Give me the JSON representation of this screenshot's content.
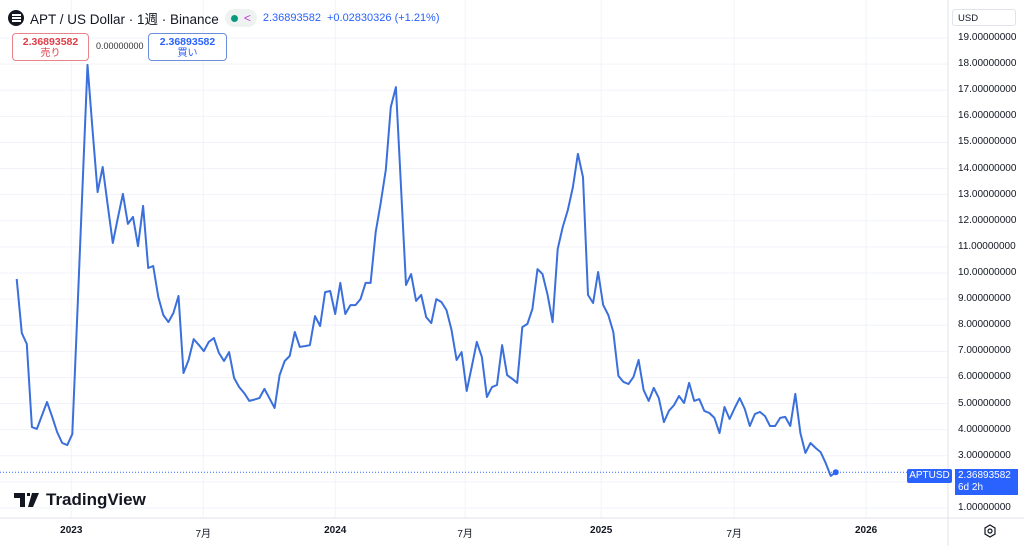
{
  "header": {
    "symbol_title": "APT / US Dollar · 1週 · Binance",
    "last_price": "2.36893582",
    "change": "+0.02830326 (+1.21%)",
    "status_color": "#089981"
  },
  "trade": {
    "sell_price": "2.36893582",
    "sell_label": "売り",
    "spread": "0.00000000",
    "buy_price": "2.36893582",
    "buy_label": "買い"
  },
  "price_axis": {
    "currency": "USD",
    "symbol_tag": "APTUSD",
    "current_price": "2.36893582",
    "countdown": "6d 2h"
  },
  "watermark": "TradingView",
  "colors": {
    "line": "#3a6fdc",
    "accent": "#2962ff",
    "sell": "#e03c47"
  },
  "chart_data": {
    "type": "line",
    "interval": "1週",
    "ylim": [
      1,
      19
    ],
    "y_ticks": [
      "1.00000000",
      "2.00000000",
      "3.00000000",
      "4.00000000",
      "5.00000000",
      "6.00000000",
      "7.00000000",
      "8.00000000",
      "9.00000000",
      "10.00000000",
      "11.00000000",
      "12.00000000",
      "13.00000000",
      "14.00000000",
      "15.00000000",
      "16.00000000",
      "17.00000000",
      "18.00000000",
      "19.00000000"
    ],
    "x_ticks": [
      {
        "label": "2023",
        "week": 10.8
      },
      {
        "label": "7月",
        "week": 36.9
      },
      {
        "label": "2024",
        "week": 63.0
      },
      {
        "label": "7月",
        "week": 88.7
      },
      {
        "label": "2025",
        "week": 115.6
      },
      {
        "label": "7月",
        "week": 141.9
      },
      {
        "label": "2026",
        "week": 168.0
      }
    ],
    "grid": true,
    "values": [
      9.77,
      7.7,
      7.28,
      4.1,
      4.03,
      4.55,
      5.06,
      4.5,
      3.91,
      3.49,
      3.41,
      3.83,
      8.5,
      13.2,
      17.97,
      15.5,
      13.1,
      14.06,
      12.6,
      11.15,
      12.1,
      13.03,
      11.88,
      12.15,
      11.03,
      12.57,
      10.19,
      10.27,
      9.08,
      8.39,
      8.12,
      8.47,
      9.12,
      6.17,
      6.67,
      7.47,
      7.25,
      7.01,
      7.36,
      7.51,
      6.94,
      6.63,
      6.97,
      5.98,
      5.63,
      5.4,
      5.1,
      5.15,
      5.21,
      5.56,
      5.2,
      4.83,
      6.09,
      6.63,
      6.82,
      7.74,
      7.17,
      7.2,
      7.24,
      8.35,
      7.97,
      9.27,
      9.31,
      8.43,
      9.62,
      8.43,
      8.77,
      8.77,
      9.0,
      9.62,
      9.62,
      11.57,
      12.68,
      13.95,
      16.36,
      17.12,
      13.3,
      9.54,
      9.96,
      8.93,
      9.16,
      8.31,
      8.08,
      9.0,
      8.89,
      8.58,
      7.82,
      6.67,
      6.97,
      5.48,
      6.4,
      7.36,
      6.78,
      5.25,
      5.63,
      5.71,
      7.24,
      6.09,
      5.95,
      5.79,
      7.93,
      8.05,
      8.62,
      10.15,
      9.96,
      9.16,
      8.12,
      10.92,
      11.76,
      12.41,
      13.29,
      14.56,
      13.67,
      9.16,
      8.85,
      10.04,
      8.77,
      8.39,
      7.74,
      6.06,
      5.83,
      5.75,
      6.02,
      6.67,
      5.52,
      5.1,
      5.6,
      5.21,
      4.29,
      4.72,
      4.94,
      5.29,
      5.02,
      5.79,
      5.1,
      5.17,
      4.72,
      4.64,
      4.45,
      3.87,
      4.87,
      4.41,
      4.83,
      5.21,
      4.79,
      4.14,
      4.6,
      4.68,
      4.52,
      4.14,
      4.14,
      4.45,
      4.49,
      4.14,
      5.37,
      3.87,
      3.11,
      3.49,
      3.3,
      3.14,
      2.72,
      2.23,
      2.37
    ],
    "last_value": 2.36893582
  }
}
